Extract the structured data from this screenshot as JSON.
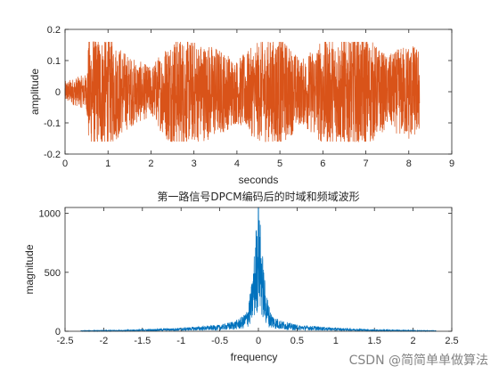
{
  "chart_data": [
    {
      "type": "line",
      "title": "",
      "xlabel": "seconds",
      "ylabel": "amplitude",
      "xlim": [
        0,
        9
      ],
      "ylim": [
        -0.2,
        0.2
      ],
      "xticks": [
        "0",
        "1",
        "2",
        "3",
        "4",
        "5",
        "6",
        "7",
        "8",
        "9"
      ],
      "yticks": [
        "-0.2",
        "-0.1",
        "0",
        "0.1",
        "0.2"
      ],
      "color": "#D95319",
      "signal_duration": 8.25,
      "approx_peak_amplitude": 0.16,
      "envelope": [
        {
          "x": 0.0,
          "amp": 0.03
        },
        {
          "x": 0.5,
          "amp": 0.05
        },
        {
          "x": 0.55,
          "amp": 0.16
        },
        {
          "x": 1.0,
          "amp": 0.16
        },
        {
          "x": 1.5,
          "amp": 0.1
        },
        {
          "x": 2.0,
          "amp": 0.07
        },
        {
          "x": 2.5,
          "amp": 0.16
        },
        {
          "x": 3.5,
          "amp": 0.13
        },
        {
          "x": 4.0,
          "amp": 0.09
        },
        {
          "x": 4.5,
          "amp": 0.14
        },
        {
          "x": 5.0,
          "amp": 0.16
        },
        {
          "x": 5.5,
          "amp": 0.09
        },
        {
          "x": 6.0,
          "amp": 0.15
        },
        {
          "x": 7.0,
          "amp": 0.16
        },
        {
          "x": 7.5,
          "amp": 0.1
        },
        {
          "x": 8.0,
          "amp": 0.14
        },
        {
          "x": 8.25,
          "amp": 0.12
        }
      ]
    },
    {
      "type": "line",
      "title": "第一路信号DPCM编码后的时域和频域波形",
      "xlabel": "frequency",
      "ylabel": "magnitude",
      "xlim": [
        -2.5,
        2.5
      ],
      "ylim": [
        0,
        1050
      ],
      "xticks": [
        "-2.5",
        "-2",
        "-1.5",
        "-1",
        "-0.5",
        "0",
        "0.5",
        "1",
        "1.5",
        "2",
        "2.5"
      ],
      "yticks": [
        "0",
        "500",
        "1000"
      ],
      "color": "#0072BD",
      "spectrum_range": [
        -2.3,
        2.3
      ],
      "peak_magnitude": 1050,
      "envelope": [
        {
          "x": 0.0,
          "mag": 1050
        },
        {
          "x": 0.03,
          "mag": 900
        },
        {
          "x": 0.05,
          "mag": 700
        },
        {
          "x": 0.08,
          "mag": 450
        },
        {
          "x": 0.1,
          "mag": 350
        },
        {
          "x": 0.15,
          "mag": 180
        },
        {
          "x": 0.2,
          "mag": 130
        },
        {
          "x": 0.3,
          "mag": 90
        },
        {
          "x": 0.5,
          "mag": 55
        },
        {
          "x": 0.8,
          "mag": 40
        },
        {
          "x": 1.0,
          "mag": 30
        },
        {
          "x": 1.5,
          "mag": 15
        },
        {
          "x": 2.0,
          "mag": 8
        },
        {
          "x": 2.3,
          "mag": 6
        }
      ]
    }
  ],
  "watermark": "CSDN @简简单单做算法"
}
